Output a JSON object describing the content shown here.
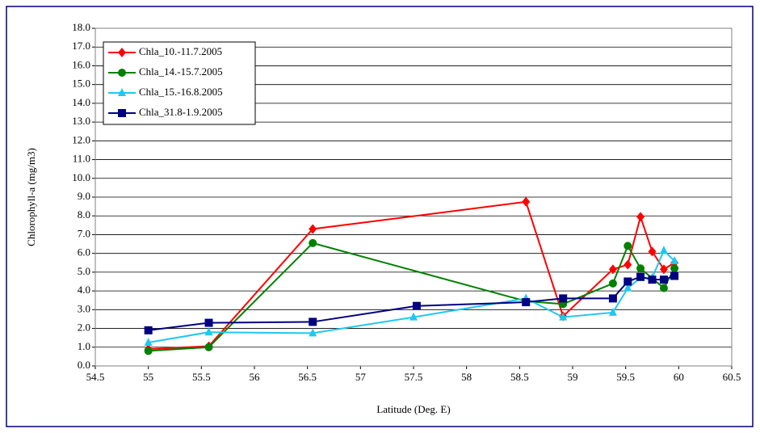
{
  "chart_data": {
    "type": "line",
    "x_label": "Latitude (Deg. E)",
    "y_label": "Chlorophyll-a (mg/m3)",
    "xlim": [
      54.5,
      60.5
    ],
    "xticks": [
      54.5,
      55,
      55.5,
      56,
      56.5,
      57,
      57.5,
      58,
      58.5,
      59,
      59.5,
      60,
      60.5
    ],
    "ylim": [
      0,
      18
    ],
    "yticks": [
      {
        "value": 0,
        "label": "0.0"
      },
      {
        "value": 1,
        "label": "1.0"
      },
      {
        "value": 2,
        "label": "2.0"
      },
      {
        "value": 3,
        "label": "3.0"
      },
      {
        "value": 4,
        "label": "4.0"
      },
      {
        "value": 5,
        "label": "5.0"
      },
      {
        "value": 6,
        "label": "6.0"
      },
      {
        "value": 7,
        "label": "7.0"
      },
      {
        "value": 8,
        "label": "8.0"
      },
      {
        "value": 9,
        "label": "9.0"
      },
      {
        "value": 10,
        "label": "10.0"
      },
      {
        "value": 11,
        "label": "11.0"
      },
      {
        "value": 12,
        "label": "12.0"
      },
      {
        "value": 13,
        "label": "13.0"
      },
      {
        "value": 14,
        "label": "14.0"
      },
      {
        "value": 15,
        "label": "15.0"
      },
      {
        "value": 16,
        "label": "16.0"
      },
      {
        "value": 17,
        "label": "17.0"
      },
      {
        "value": 18,
        "label": "18.0"
      }
    ],
    "grid": true,
    "legend": "upper left",
    "series": [
      {
        "name": "Chla_10.-11.7.2005",
        "color": "#ff0000",
        "marker": "diamond",
        "x": [
          55.0,
          55.57,
          56.55,
          58.56,
          58.91,
          59.38,
          59.52,
          59.64,
          59.75,
          59.86,
          59.96
        ],
        "values": [
          0.9,
          1.05,
          7.3,
          8.75,
          2.65,
          5.15,
          5.4,
          7.95,
          6.1,
          5.15,
          5.5
        ]
      },
      {
        "name": "Chla_14.-15.7.2005",
        "color": "#008000",
        "marker": "circle",
        "x": [
          55.0,
          55.57,
          56.55,
          58.56,
          58.91,
          59.38,
          59.52,
          59.64,
          59.86,
          59.96
        ],
        "values": [
          0.8,
          1.0,
          6.55,
          3.45,
          3.3,
          4.4,
          6.4,
          5.2,
          4.15,
          5.2
        ]
      },
      {
        "name": "Chla_15.-16.8.2005",
        "color": "#1ec8f0",
        "marker": "triangle",
        "x": [
          55.0,
          55.57,
          56.55,
          57.5,
          58.56,
          58.91,
          59.38,
          59.52,
          59.64,
          59.75,
          59.86,
          59.96
        ],
        "values": [
          1.25,
          1.8,
          1.75,
          2.6,
          3.6,
          2.6,
          2.85,
          4.15,
          4.7,
          4.7,
          6.15,
          5.6
        ]
      },
      {
        "name": "Chla_31.8-1.9.2005",
        "color": "#000080",
        "marker": "square",
        "x": [
          55.0,
          55.57,
          56.55,
          57.53,
          58.56,
          58.91,
          59.38,
          59.52,
          59.64,
          59.75,
          59.86,
          59.96
        ],
        "values": [
          1.9,
          2.3,
          2.35,
          3.2,
          3.4,
          3.6,
          3.6,
          4.5,
          4.75,
          4.6,
          4.6,
          4.8
        ]
      }
    ]
  }
}
